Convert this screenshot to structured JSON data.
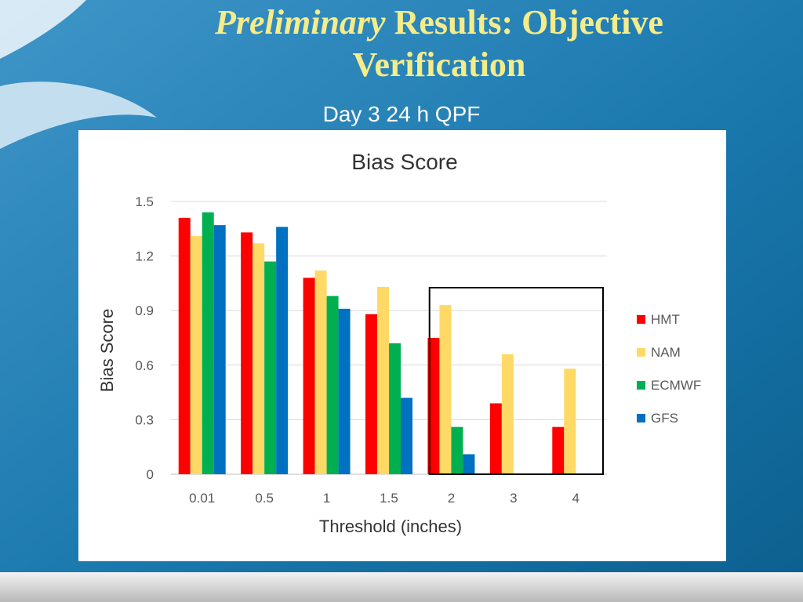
{
  "slide": {
    "title_italic": "Preliminary",
    "title_rest": " Results: Objective Verification",
    "subtitle": "Day 3 24 h QPF"
  },
  "colors": {
    "title": "#f5ec8a",
    "background": "#0f6b9c"
  },
  "chart_data": {
    "type": "bar",
    "title": "Bias Score",
    "xlabel": "Threshold (inches)",
    "ylabel": "Bias Score",
    "ylim": [
      0,
      1.5
    ],
    "yticks": [
      "0",
      "0.3",
      "0.6",
      "0.9",
      "1.2",
      "1.5"
    ],
    "categories": [
      "0.01",
      "0.5",
      "1",
      "1.5",
      "2",
      "3",
      "4"
    ],
    "grid": true,
    "legend_position": "right",
    "highlight_box": [
      "2",
      "4"
    ],
    "series": [
      {
        "name": "HMT",
        "color": "#ff0000",
        "values": [
          1.41,
          1.33,
          1.08,
          0.88,
          0.75,
          0.39,
          0.26
        ]
      },
      {
        "name": "NAM",
        "color": "#ffd966",
        "values": [
          1.31,
          1.27,
          1.12,
          1.03,
          0.93,
          0.66,
          0.58
        ]
      },
      {
        "name": "ECMWF",
        "color": "#00b050",
        "values": [
          1.44,
          1.17,
          0.98,
          0.72,
          0.26,
          null,
          null
        ]
      },
      {
        "name": "GFS",
        "color": "#0070c0",
        "values": [
          1.37,
          1.36,
          0.91,
          0.42,
          0.11,
          null,
          null
        ]
      }
    ]
  }
}
